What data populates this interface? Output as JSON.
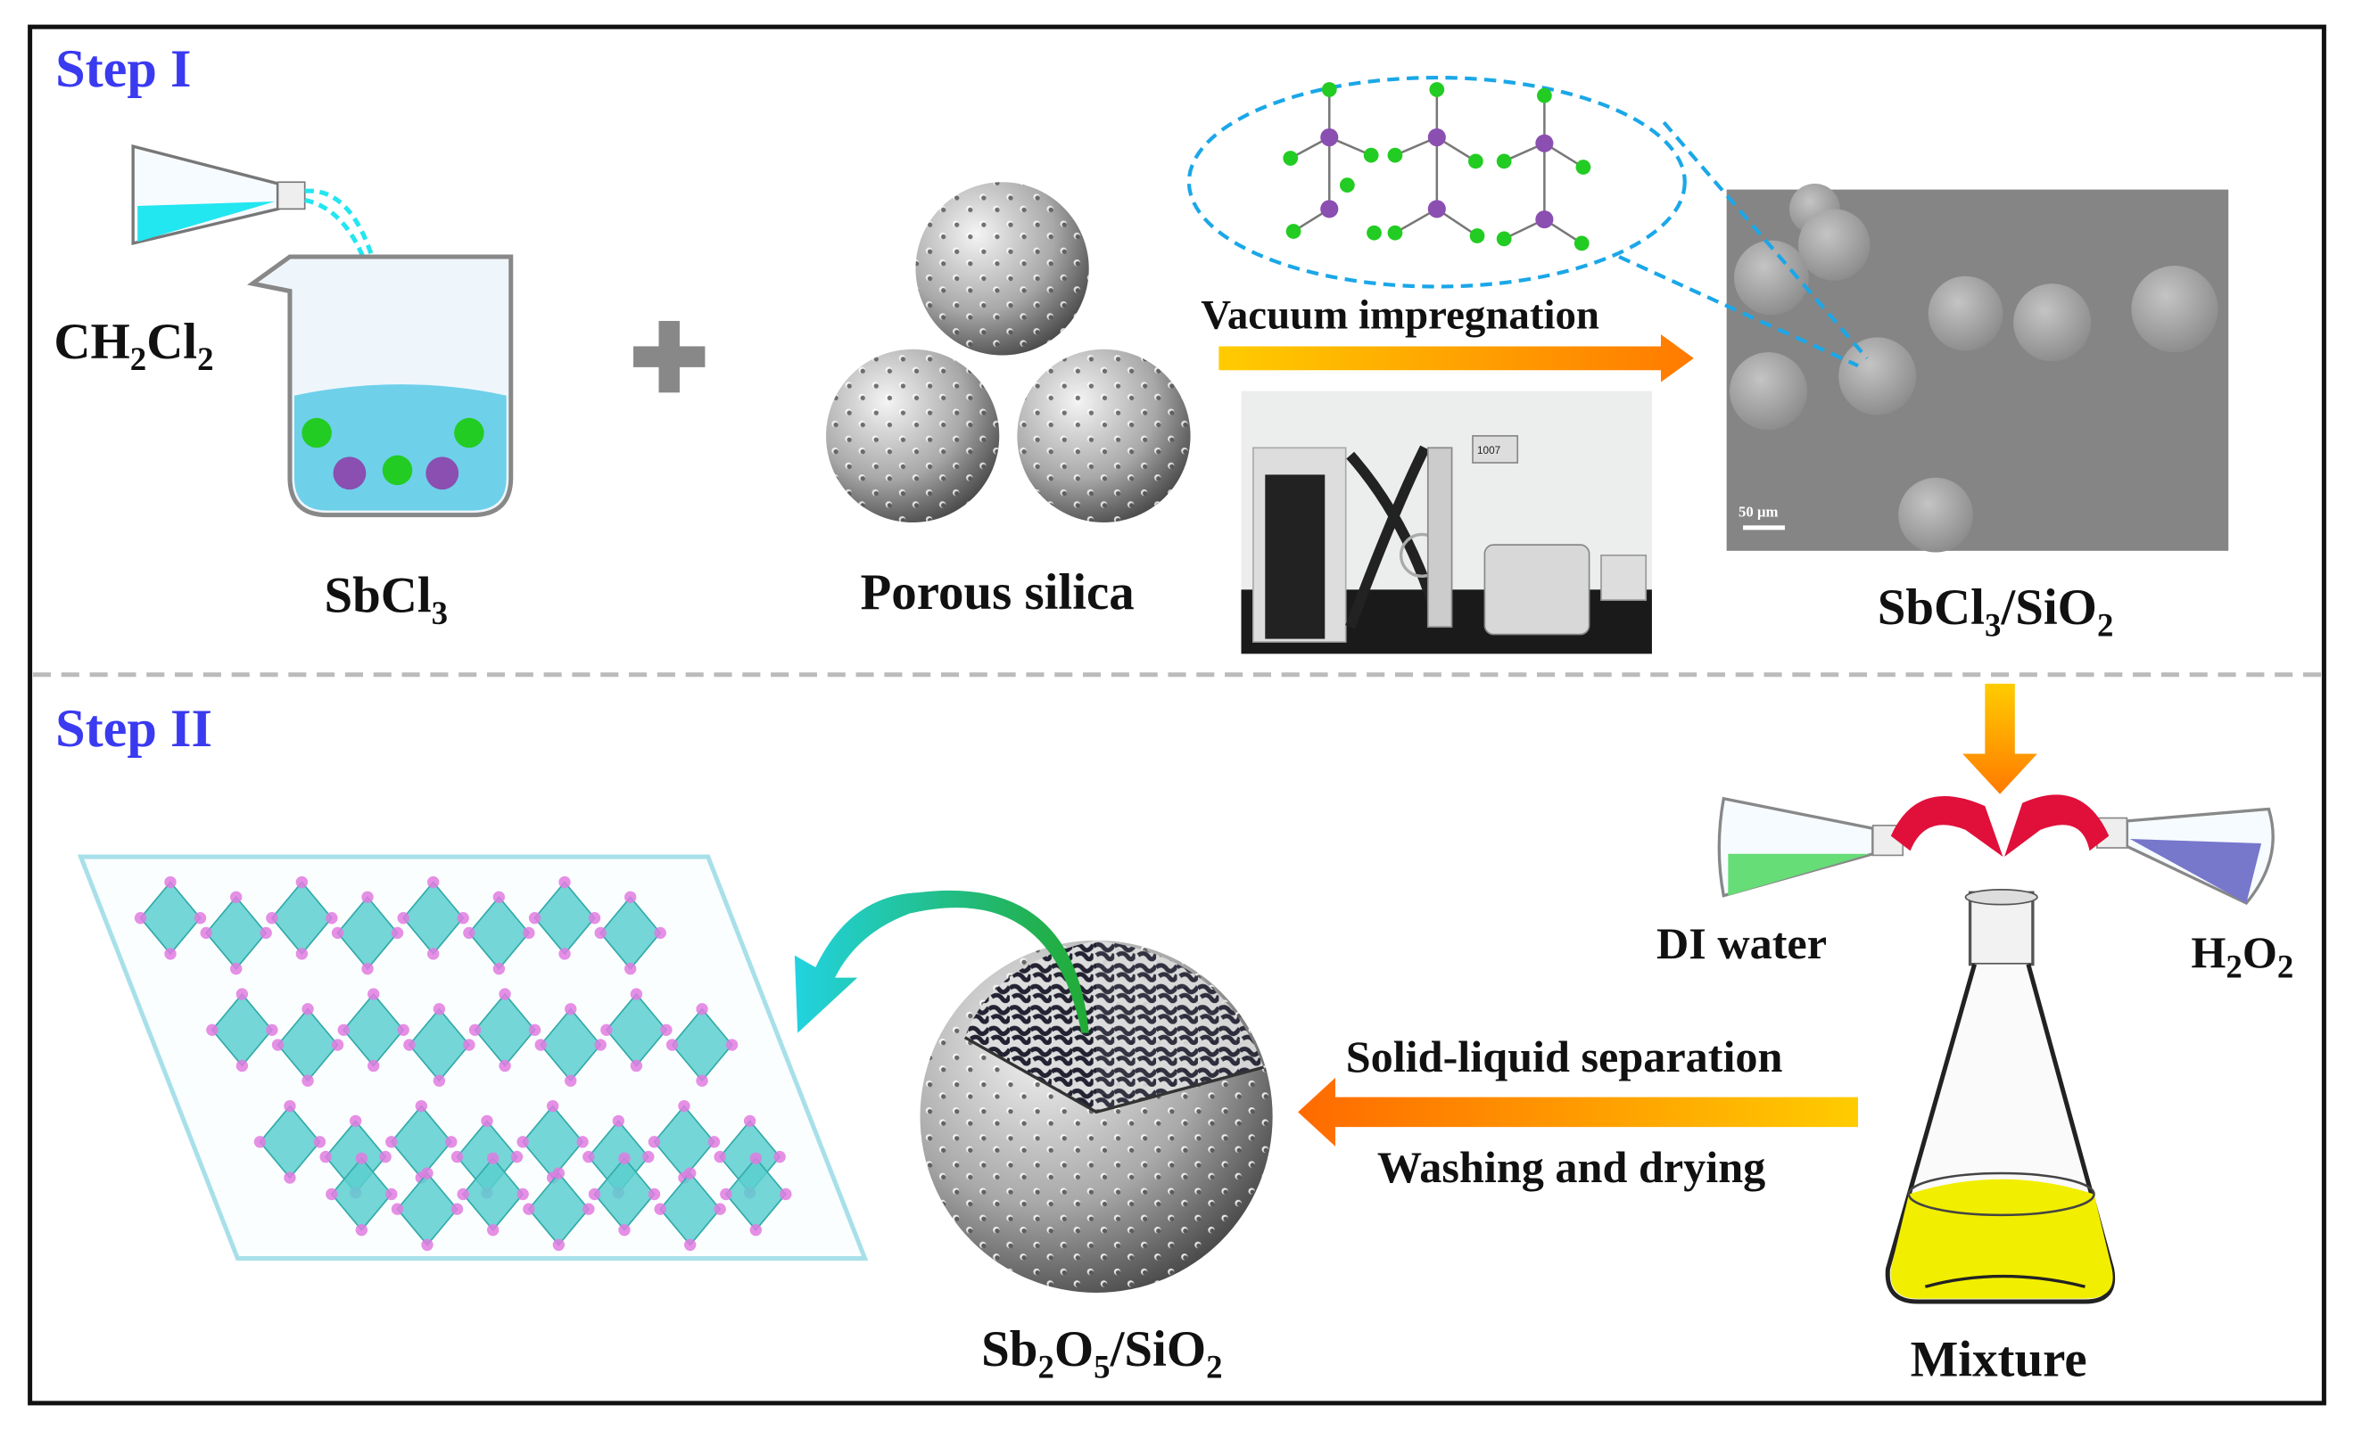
{
  "step1": {
    "title": "Step I",
    "solvent": [
      "CH",
      "2",
      "Cl",
      "2"
    ],
    "precursor": [
      "SbCl",
      "3"
    ],
    "support": "Porous silica",
    "process": "Vacuum impregnation",
    "product": [
      "SbCl",
      "3",
      "/SiO",
      "2"
    ],
    "sem_scale": "50 μm",
    "instrument_display": "1007"
  },
  "step2": {
    "title": "Step II",
    "reagent_left": "DI water",
    "reagent_right": [
      "H",
      "2",
      "O",
      "2"
    ],
    "mixture": "Mixture",
    "process_top": "Solid-liquid separation",
    "process_bottom": "Washing and drying",
    "product": [
      "Sb",
      "2",
      "O",
      "5",
      "/SiO",
      "2"
    ]
  },
  "colors": {
    "step_title": "#3a3af0",
    "solvent_cyan": "#22e6f0",
    "atom_green": "#22cc22",
    "atom_purple": "#8a4fb0",
    "arrow_orange": "#ff8c00",
    "arrow_yellow": "#ffcc00",
    "dashed_blue": "#1aa7e8",
    "di_water": "#66dd77",
    "h2o2": "#7777cc",
    "mixture_yellow": "#f2ee00",
    "crystal_cyan": "#5ccfcf",
    "crystal_pink": "#e07be0"
  }
}
